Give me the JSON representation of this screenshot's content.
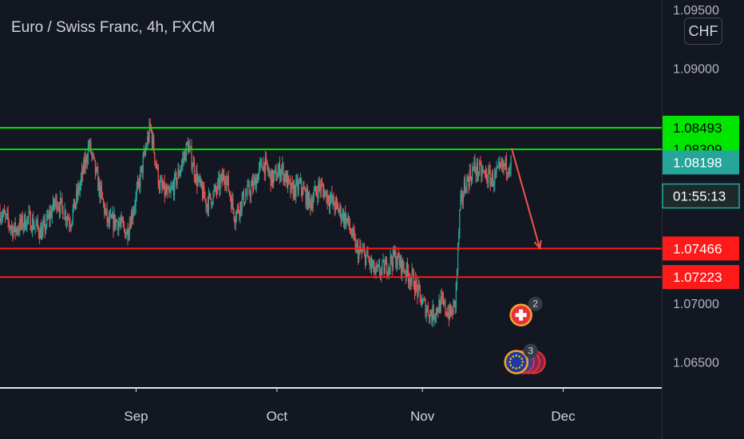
{
  "header": {
    "title": "Euro / Swiss Franc, 4h, FXCM",
    "currency_button": "CHF"
  },
  "colors": {
    "background": "#131722",
    "up": "#26a69a",
    "down": "#ef5350",
    "resistance": "#00e600",
    "support": "#ff1a1a",
    "current": "#26a69a",
    "axis_text": "#b2b5be",
    "arrow": "#ef5350"
  },
  "chart_data": {
    "type": "candlestick",
    "symbol": "EURCHF",
    "timeframe": "4h",
    "source": "FXCM",
    "ylim": [
      1.0628,
      1.0958
    ],
    "y_ticks": [
      {
        "value": 1.095,
        "label": "1.09500"
      },
      {
        "value": 1.09,
        "label": "1.09000"
      },
      {
        "value": 1.07,
        "label": "1.07000"
      },
      {
        "value": 1.065,
        "label": "1.06500"
      }
    ],
    "x_range": [
      "2023-08-03",
      "2023-12-22"
    ],
    "x_ticks": [
      {
        "date": "2023-09-01",
        "label": "Sep"
      },
      {
        "date": "2023-10-01",
        "label": "Oct"
      },
      {
        "date": "2023-11-01",
        "label": "Nov"
      },
      {
        "date": "2023-12-01",
        "label": "Dec"
      }
    ],
    "path": [
      [
        "2023-08-03",
        1.0778
      ],
      [
        "2023-08-06",
        1.0762
      ],
      [
        "2023-08-09",
        1.0772
      ],
      [
        "2023-08-12",
        1.076
      ],
      [
        "2023-08-15",
        1.0788
      ],
      [
        "2023-08-18",
        1.077
      ],
      [
        "2023-08-20",
        1.08
      ],
      [
        "2023-08-22",
        1.0835
      ],
      [
        "2023-08-24",
        1.08
      ],
      [
        "2023-08-26",
        1.0768
      ],
      [
        "2023-08-28",
        1.077
      ],
      [
        "2023-08-30",
        1.076
      ],
      [
        "2023-09-01",
        1.079
      ],
      [
        "2023-09-03",
        1.083
      ],
      [
        "2023-09-04",
        1.085
      ],
      [
        "2023-09-06",
        1.08
      ],
      [
        "2023-09-08",
        1.079
      ],
      [
        "2023-09-10",
        1.081
      ],
      [
        "2023-09-12",
        1.0835
      ],
      [
        "2023-09-14",
        1.0805
      ],
      [
        "2023-09-16",
        1.0785
      ],
      [
        "2023-09-18",
        1.0795
      ],
      [
        "2023-09-20",
        1.081
      ],
      [
        "2023-09-22",
        1.0775
      ],
      [
        "2023-09-24",
        1.079
      ],
      [
        "2023-09-26",
        1.08
      ],
      [
        "2023-09-28",
        1.082
      ],
      [
        "2023-09-30",
        1.0805
      ],
      [
        "2023-10-02",
        1.0815
      ],
      [
        "2023-10-04",
        1.0795
      ],
      [
        "2023-10-06",
        1.08
      ],
      [
        "2023-10-08",
        1.0785
      ],
      [
        "2023-10-10",
        1.08
      ],
      [
        "2023-10-12",
        1.079
      ],
      [
        "2023-10-14",
        1.078
      ],
      [
        "2023-10-16",
        1.077
      ],
      [
        "2023-10-18",
        1.0745
      ],
      [
        "2023-10-20",
        1.074
      ],
      [
        "2023-10-22",
        1.0725
      ],
      [
        "2023-10-24",
        1.073
      ],
      [
        "2023-10-26",
        1.074
      ],
      [
        "2023-10-28",
        1.073
      ],
      [
        "2023-10-30",
        1.072
      ],
      [
        "2023-11-01",
        1.07
      ],
      [
        "2023-11-03",
        1.069
      ],
      [
        "2023-11-05",
        1.07
      ],
      [
        "2023-11-07",
        1.069
      ],
      [
        "2023-11-08",
        1.07
      ],
      [
        "2023-11-09",
        1.078
      ],
      [
        "2023-11-10",
        1.08
      ],
      [
        "2023-11-12",
        1.0815
      ],
      [
        "2023-11-14",
        1.081
      ],
      [
        "2023-11-16",
        1.0805
      ],
      [
        "2023-11-18",
        1.0815
      ],
      [
        "2023-11-20",
        1.082
      ]
    ],
    "levels": [
      {
        "value": 1.08493,
        "label": "1.08493",
        "kind": "resistance"
      },
      {
        "value": 1.08309,
        "label": "1.08309",
        "kind": "resistance"
      },
      {
        "value": 1.07466,
        "label": "1.07466",
        "kind": "support"
      },
      {
        "value": 1.07223,
        "label": "1.07223",
        "kind": "support"
      }
    ],
    "current_price": {
      "value": 1.08198,
      "label": "1.08198",
      "countdown": "01:55:13"
    },
    "last_price_dotted": 1.0831,
    "projection_arrow": {
      "from": [
        "2023-11-20",
        1.0832
      ],
      "to": [
        "2023-11-26",
        1.0747
      ]
    },
    "events": [
      {
        "flag": "swiss-flag",
        "count": "2",
        "date": "2023-11-22",
        "value": 1.069
      },
      {
        "flag": "eu-flag",
        "count": "3",
        "date": "2023-11-21",
        "value": 1.065
      }
    ]
  }
}
